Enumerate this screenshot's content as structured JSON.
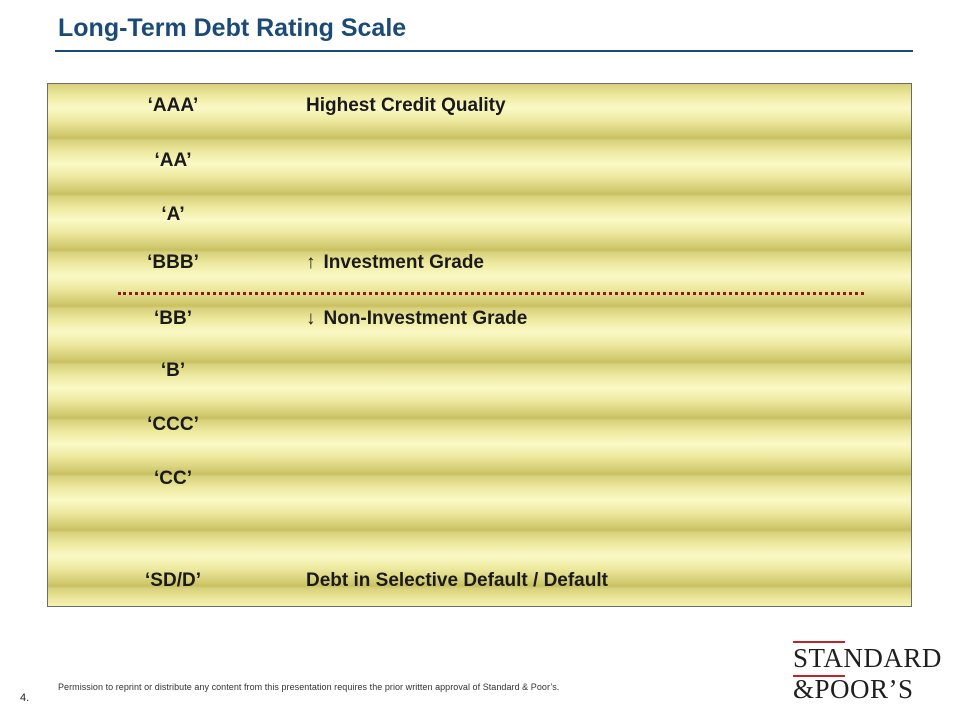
{
  "title": "Long-Term Debt Rating Scale",
  "rows": [
    {
      "rating": "‘AAA’",
      "arrow": "",
      "desc": "Highest Credit Quality"
    },
    {
      "rating": "‘AA’",
      "arrow": "",
      "desc": ""
    },
    {
      "rating": "‘A’",
      "arrow": "",
      "desc": ""
    },
    {
      "rating": "‘BBB’",
      "arrow": "↑",
      "desc": "Investment Grade"
    },
    {
      "rating": "‘BB’",
      "arrow": "↓",
      "desc": "Non-Investment Grade"
    },
    {
      "rating": "‘B’",
      "arrow": "",
      "desc": ""
    },
    {
      "rating": "‘CCC’",
      "arrow": "",
      "desc": ""
    },
    {
      "rating": "‘CC’",
      "arrow": "",
      "desc": ""
    },
    {
      "rating": "‘SD/D’",
      "arrow": "",
      "desc": "Debt in Selective Default / Default"
    }
  ],
  "footer": {
    "page_number": "4.",
    "notice": "Permission to reprint or distribute any content from this presentation requires the prior written approval of Standard & Poor’s."
  },
  "logo": {
    "line1": "STANDARD",
    "line2": "&POOR’S"
  },
  "colors": {
    "title": "#1a4a78",
    "divider": "#8b1a1a",
    "logo_accent": "#c0232a"
  }
}
